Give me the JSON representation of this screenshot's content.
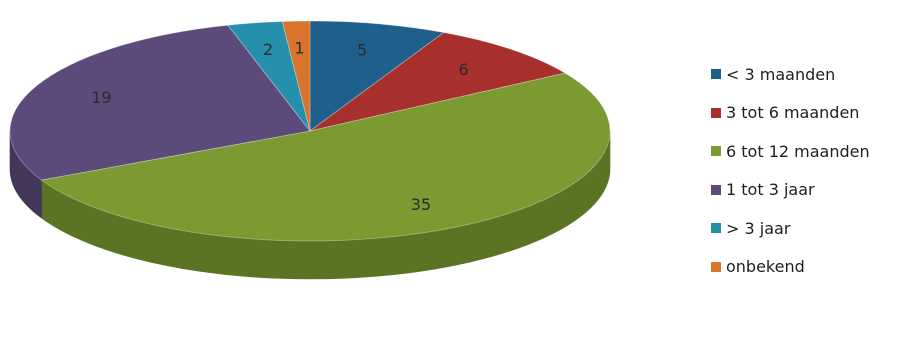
{
  "chart_data": {
    "type": "pie",
    "style": "3d",
    "categories": [
      "< 3 maanden",
      "3 tot 6 maanden",
      "6 tot 12 maanden",
      "1 tot 3 jaar",
      "> 3 jaar",
      "onbekend"
    ],
    "values": [
      5,
      6,
      35,
      19,
      2,
      1
    ],
    "value_labels": [
      "5",
      "6",
      "35",
      "19",
      "2",
      "1"
    ],
    "colors": [
      "#1f5f8c",
      "#a8302c",
      "#7b9a32",
      "#5c4a7a",
      "#2690ac",
      "#d8742c"
    ],
    "side_colors": [
      "#154566",
      "#7b2220",
      "#5a7424",
      "#433659",
      "#1b6a80",
      "#a35522"
    ],
    "start_angle_deg": -90,
    "direction": "clockwise",
    "legend_position": "right"
  }
}
